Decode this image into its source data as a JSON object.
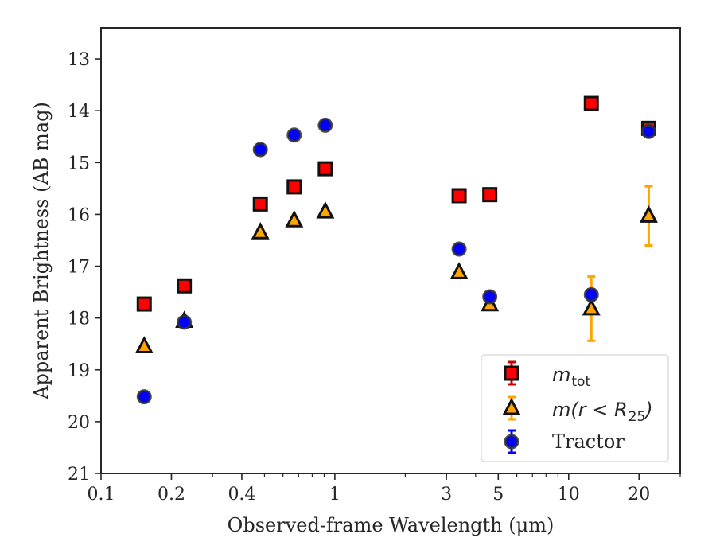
{
  "chart_data": {
    "type": "scatter",
    "xlabel": "Observed-frame Wavelength (μm)",
    "ylabel": "Apparent Brightness (AB mag)",
    "xscale": "log",
    "xlim": [
      0.1,
      30
    ],
    "ylim": [
      21,
      12.4
    ],
    "y_inverted": true,
    "grid": false,
    "legend_position": "lower-right",
    "x_ticks": [
      {
        "value": 0.1,
        "label": "0.1"
      },
      {
        "value": 0.2,
        "label": "0.2"
      },
      {
        "value": 0.4,
        "label": "0.4"
      },
      {
        "value": 1,
        "label": "1"
      },
      {
        "value": 3,
        "label": "3"
      },
      {
        "value": 5,
        "label": "5"
      },
      {
        "value": 10,
        "label": "10"
      },
      {
        "value": 20,
        "label": "20"
      }
    ],
    "y_ticks": [
      {
        "value": 13,
        "label": "13"
      },
      {
        "value": 14,
        "label": "14"
      },
      {
        "value": 15,
        "label": "15"
      },
      {
        "value": 16,
        "label": "16"
      },
      {
        "value": 17,
        "label": "17"
      },
      {
        "value": 18,
        "label": "18"
      },
      {
        "value": 19,
        "label": "19"
      },
      {
        "value": 20,
        "label": "20"
      },
      {
        "value": 21,
        "label": "21"
      }
    ],
    "series": [
      {
        "name": "m_tot",
        "marker": "square",
        "color": "#ff0000",
        "errcolor": "#cc0000",
        "points": [
          {
            "x": 0.153,
            "y": 17.73,
            "err": 0.05
          },
          {
            "x": 0.227,
            "y": 17.38,
            "err": 0.05
          },
          {
            "x": 0.48,
            "y": 15.8,
            "err": 0.05
          },
          {
            "x": 0.67,
            "y": 15.47,
            "err": 0.05
          },
          {
            "x": 0.91,
            "y": 15.12,
            "err": 0.05
          },
          {
            "x": 3.4,
            "y": 15.64,
            "err": 0.05
          },
          {
            "x": 4.6,
            "y": 15.62,
            "err": 0.05
          },
          {
            "x": 12.5,
            "y": 13.86,
            "err": 0.05
          },
          {
            "x": 22.0,
            "y": 14.34,
            "err": 0.05
          }
        ]
      },
      {
        "name": "m(r<R25)",
        "marker": "triangle",
        "color": "#ffa500",
        "errcolor": "#ffa500",
        "points": [
          {
            "x": 0.153,
            "y": 18.55,
            "err": 0.05
          },
          {
            "x": 0.227,
            "y": 18.06,
            "err": 0.05
          },
          {
            "x": 0.48,
            "y": 16.35,
            "err": 0.05
          },
          {
            "x": 0.67,
            "y": 16.12,
            "err": 0.05
          },
          {
            "x": 0.91,
            "y": 15.95,
            "err": 0.05
          },
          {
            "x": 3.4,
            "y": 17.12,
            "err": 0.05
          },
          {
            "x": 4.6,
            "y": 17.74,
            "err": 0.05
          },
          {
            "x": 12.5,
            "y": 17.82,
            "err": 0.62
          },
          {
            "x": 22.0,
            "y": 16.03,
            "err": 0.57
          }
        ]
      },
      {
        "name": "Tractor",
        "marker": "circle",
        "color": "#0000ff",
        "errcolor": "#0000ff",
        "points": [
          {
            "x": 0.153,
            "y": 19.52,
            "err": 0.08
          },
          {
            "x": 0.227,
            "y": 18.08,
            "err": 0.08
          },
          {
            "x": 0.48,
            "y": 14.75,
            "err": 0.1
          },
          {
            "x": 0.67,
            "y": 14.47,
            "err": 0.08
          },
          {
            "x": 0.91,
            "y": 14.28,
            "err": 0.08
          },
          {
            "x": 3.4,
            "y": 16.67,
            "err": 0.1
          },
          {
            "x": 4.6,
            "y": 17.59,
            "err": 0.08
          },
          {
            "x": 12.5,
            "y": 17.55,
            "err": 0.1
          },
          {
            "x": 22.0,
            "y": 14.4,
            "err": 0.08
          }
        ]
      }
    ],
    "legend": [
      {
        "math": "m",
        "sub": "tot",
        "label_text": "m_tot"
      },
      {
        "math": "m(r < R",
        "sub": "25",
        "close": ")",
        "label_text": "m(r < R_25)"
      },
      {
        "label_text": "Tractor"
      }
    ]
  }
}
